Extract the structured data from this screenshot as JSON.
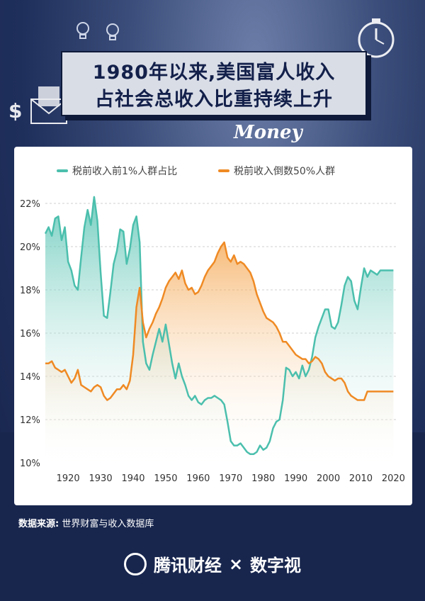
{
  "title": {
    "line1": "1980年以来,美国富人收入",
    "line2": "占社会总收入比重持续上升"
  },
  "money_label": "Money",
  "source": {
    "label": "数据来源:",
    "text": "世界财富与收入数据库"
  },
  "footer": {
    "brand": "腾讯财经",
    "times": "×",
    "partner": "数字视"
  },
  "icons": [
    "lightbulb-icon",
    "stopwatch-icon",
    "envelope-icon",
    "dollar-icon",
    "play-logo-icon"
  ],
  "colors": {
    "teal": "#4bbfad",
    "orange": "#ef8a24",
    "title_bg": "#d9dde6"
  },
  "chart_data": {
    "type": "area",
    "title": "",
    "xlabel": "",
    "ylabel": "",
    "xlim": [
      1913,
      2021
    ],
    "ylim": [
      10,
      22
    ],
    "yticks": [
      10,
      12,
      14,
      16,
      18,
      20,
      22
    ],
    "ytick_labels": [
      "10%",
      "12%",
      "14%",
      "16%",
      "18%",
      "20%",
      "22%"
    ],
    "xticks": [
      1920,
      1930,
      1940,
      1950,
      1960,
      1970,
      1980,
      1990,
      2000,
      2010,
      2020
    ],
    "xtick_labels": [
      "1920",
      "1930",
      "1940",
      "1950",
      "1960",
      "1970",
      "1980",
      "1990",
      "2000",
      "2010",
      "2020"
    ],
    "grid": "horizontal-dashed",
    "legend": "top",
    "series": [
      {
        "name": "税前收入前1%人群占比",
        "color": "#4bbfad",
        "x": [
          1913,
          1914,
          1915,
          1916,
          1917,
          1918,
          1919,
          1920,
          1921,
          1922,
          1923,
          1924,
          1925,
          1926,
          1927,
          1928,
          1929,
          1930,
          1931,
          1932,
          1933,
          1934,
          1935,
          1936,
          1937,
          1938,
          1939,
          1940,
          1941,
          1942,
          1943,
          1944,
          1945,
          1946,
          1947,
          1948,
          1949,
          1950,
          1951,
          1952,
          1953,
          1954,
          1955,
          1956,
          1957,
          1958,
          1959,
          1960,
          1961,
          1962,
          1963,
          1964,
          1965,
          1966,
          1967,
          1968,
          1969,
          1970,
          1971,
          1972,
          1973,
          1974,
          1975,
          1976,
          1977,
          1978,
          1979,
          1980,
          1981,
          1982,
          1983,
          1984,
          1985,
          1986,
          1987,
          1988,
          1989,
          1990,
          1991,
          1992,
          1993,
          1994,
          1995,
          1996,
          1997,
          1998,
          1999,
          2000,
          2001,
          2002,
          2003,
          2004,
          2005,
          2006,
          2007,
          2008,
          2009,
          2010,
          2011,
          2012,
          2013,
          2014,
          2015,
          2016,
          2017,
          2018,
          2019,
          2020
        ],
        "values": [
          20.6,
          20.9,
          20.5,
          21.3,
          21.4,
          20.3,
          20.9,
          19.3,
          18.9,
          18.2,
          18.0,
          19.5,
          20.9,
          21.7,
          21.0,
          22.3,
          21.2,
          18.8,
          16.8,
          16.7,
          17.9,
          19.2,
          19.8,
          20.8,
          20.7,
          19.2,
          19.9,
          21.0,
          21.4,
          20.2,
          15.6,
          14.6,
          14.3,
          15.0,
          15.6,
          16.2,
          15.6,
          16.4,
          15.5,
          14.6,
          13.9,
          14.6,
          14.0,
          13.6,
          13.1,
          12.9,
          13.1,
          12.8,
          12.7,
          12.9,
          13.0,
          13.0,
          13.1,
          13.0,
          12.9,
          12.7,
          11.9,
          11.0,
          10.8,
          10.8,
          10.9,
          10.7,
          10.5,
          10.4,
          10.4,
          10.5,
          10.8,
          10.6,
          10.7,
          11.0,
          11.6,
          11.9,
          12.0,
          12.9,
          14.4,
          14.3,
          14.0,
          14.2,
          13.9,
          14.5,
          14.0,
          14.3,
          14.9,
          15.8,
          16.3,
          16.7,
          17.1,
          17.1,
          16.3,
          16.2,
          16.5,
          17.3,
          18.2,
          18.6,
          18.4,
          17.5,
          17.1,
          18.1,
          19.0,
          18.6,
          18.9,
          18.8,
          18.7,
          18.9,
          18.9,
          18.9,
          18.9,
          18.9
        ]
      },
      {
        "name": "税前收入倒数50%人群",
        "color": "#ef8a24",
        "x": [
          1913,
          1914,
          1915,
          1916,
          1917,
          1918,
          1919,
          1920,
          1921,
          1922,
          1923,
          1924,
          1925,
          1926,
          1927,
          1928,
          1929,
          1930,
          1931,
          1932,
          1933,
          1934,
          1935,
          1936,
          1937,
          1938,
          1939,
          1940,
          1941,
          1942,
          1943,
          1944,
          1945,
          1946,
          1947,
          1948,
          1949,
          1950,
          1951,
          1952,
          1953,
          1954,
          1955,
          1956,
          1957,
          1958,
          1959,
          1960,
          1961,
          1962,
          1963,
          1964,
          1965,
          1966,
          1967,
          1968,
          1969,
          1970,
          1971,
          1972,
          1973,
          1974,
          1975,
          1976,
          1977,
          1978,
          1979,
          1980,
          1981,
          1982,
          1983,
          1984,
          1985,
          1986,
          1987,
          1988,
          1989,
          1990,
          1991,
          1992,
          1993,
          1994,
          1995,
          1996,
          1997,
          1998,
          1999,
          2000,
          2001,
          2002,
          2003,
          2004,
          2005,
          2006,
          2007,
          2008,
          2009,
          2010,
          2011,
          2012,
          2013,
          2014,
          2015,
          2016,
          2017,
          2018,
          2019,
          2020
        ],
        "values": [
          14.6,
          14.6,
          14.7,
          14.4,
          14.3,
          14.2,
          14.3,
          14.0,
          13.7,
          13.9,
          14.3,
          13.6,
          13.5,
          13.4,
          13.3,
          13.5,
          13.6,
          13.5,
          13.1,
          12.9,
          13.0,
          13.2,
          13.4,
          13.4,
          13.6,
          13.4,
          13.8,
          15.0,
          17.2,
          18.1,
          16.5,
          15.8,
          16.2,
          16.5,
          16.9,
          17.2,
          17.6,
          18.1,
          18.4,
          18.6,
          18.8,
          18.5,
          18.9,
          18.3,
          18.0,
          18.1,
          17.8,
          17.9,
          18.2,
          18.6,
          18.9,
          19.1,
          19.3,
          19.7,
          20.0,
          20.2,
          19.5,
          19.3,
          19.6,
          19.2,
          19.3,
          19.2,
          19.0,
          18.8,
          18.4,
          17.8,
          17.4,
          17.0,
          16.7,
          16.6,
          16.5,
          16.3,
          16.0,
          15.6,
          15.6,
          15.4,
          15.2,
          15.0,
          14.9,
          14.8,
          14.8,
          14.6,
          14.7,
          14.9,
          14.8,
          14.6,
          14.2,
          14.0,
          13.9,
          13.8,
          13.9,
          13.9,
          13.7,
          13.3,
          13.1,
          13.0,
          12.9,
          12.9,
          12.9,
          13.3,
          13.3,
          13.3,
          13.3,
          13.3,
          13.3,
          13.3,
          13.3,
          13.3
        ]
      }
    ]
  }
}
